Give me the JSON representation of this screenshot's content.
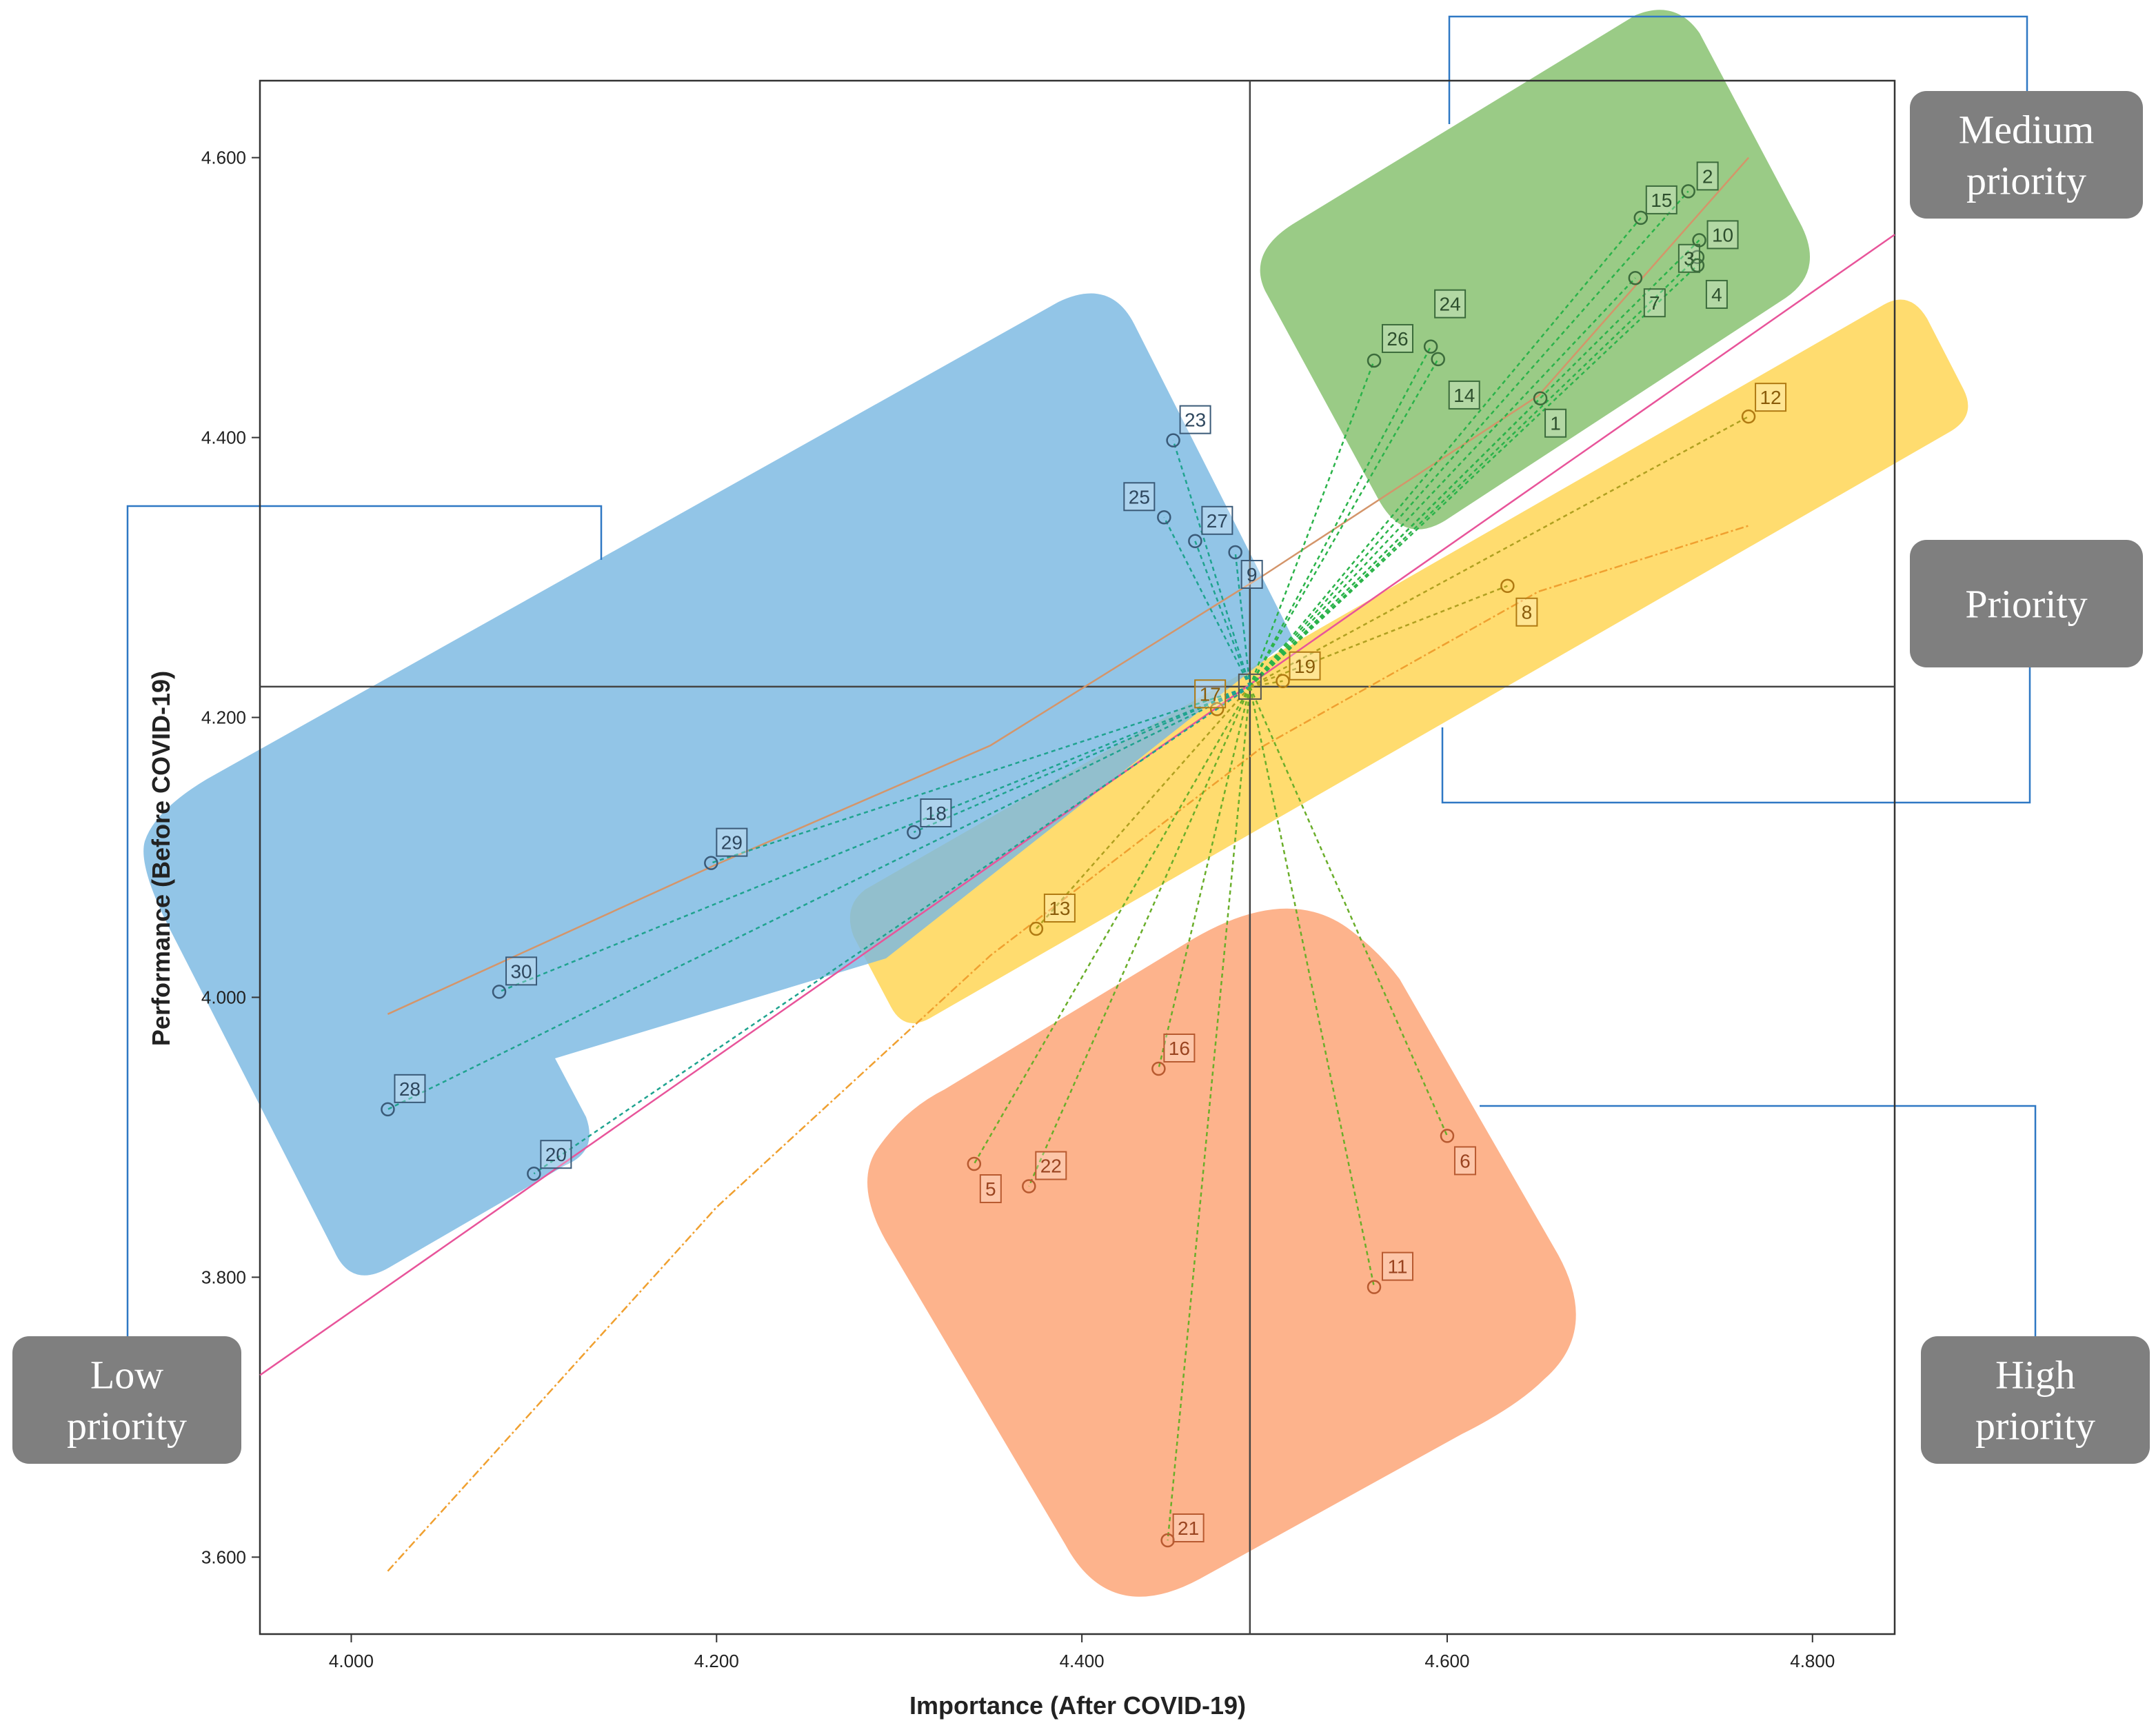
{
  "chart_data": {
    "type": "scatter",
    "title": "",
    "xlabel": "Importance (After COVID-19)",
    "ylabel": "Performance  (Before COVID-19)",
    "xlim": [
      3.95,
      4.845
    ],
    "ylim": [
      3.545,
      4.655
    ],
    "xticks": [
      {
        "value": 4.0,
        "label": "4.000"
      },
      {
        "value": 4.2,
        "label": "4.200"
      },
      {
        "value": 4.4,
        "label": "4.400"
      },
      {
        "value": 4.6,
        "label": "4.600"
      },
      {
        "value": 4.8,
        "label": "4.800"
      }
    ],
    "yticks": [
      {
        "value": 3.6,
        "label": "3.600"
      },
      {
        "value": 3.8,
        "label": "3.800"
      },
      {
        "value": 4.0,
        "label": "4.000"
      },
      {
        "value": 4.2,
        "label": "4.200"
      },
      {
        "value": 4.4,
        "label": "4.400"
      },
      {
        "value": 4.6,
        "label": "4.600"
      }
    ],
    "center": {
      "x": 4.492,
      "y": 4.222,
      "label": "C"
    },
    "reference_lines": {
      "x": 4.492,
      "y": 4.222
    },
    "diagonal": {
      "x": [
        3.95,
        4.845
      ],
      "y": [
        3.73,
        4.545
      ]
    },
    "quadrants": [
      {
        "name": "Medium priority",
        "color": "#84c06b",
        "points": [
          "1",
          "2",
          "3",
          "4",
          "7",
          "10",
          "14",
          "15",
          "24",
          "26"
        ]
      },
      {
        "name": "Priority",
        "color": "#ffd44f",
        "points": [
          "8",
          "12",
          "13",
          "17",
          "19"
        ]
      },
      {
        "name": "Low priority",
        "color": "#7ab8e2",
        "points": [
          "9",
          "18",
          "20",
          "23",
          "25",
          "27",
          "28",
          "29",
          "30"
        ]
      },
      {
        "name": "High priority",
        "color": "#fca273",
        "points": [
          "5",
          "6",
          "11",
          "16",
          "21",
          "22"
        ]
      }
    ],
    "points": [
      {
        "label": "1",
        "x": 4.651,
        "y": 4.428
      },
      {
        "label": "2",
        "x": 4.732,
        "y": 4.576
      },
      {
        "label": "3",
        "x": 4.737,
        "y": 4.529
      },
      {
        "label": "4",
        "x": 4.737,
        "y": 4.523
      },
      {
        "label": "7",
        "x": 4.703,
        "y": 4.514
      },
      {
        "label": "10",
        "x": 4.738,
        "y": 4.541
      },
      {
        "label": "14",
        "x": 4.595,
        "y": 4.456
      },
      {
        "label": "15",
        "x": 4.706,
        "y": 4.557
      },
      {
        "label": "24",
        "x": 4.591,
        "y": 4.465
      },
      {
        "label": "26",
        "x": 4.56,
        "y": 4.455
      },
      {
        "label": "8",
        "x": 4.633,
        "y": 4.294
      },
      {
        "label": "12",
        "x": 4.765,
        "y": 4.415
      },
      {
        "label": "13",
        "x": 4.375,
        "y": 4.049
      },
      {
        "label": "17",
        "x": 4.474,
        "y": 4.206
      },
      {
        "label": "19",
        "x": 4.51,
        "y": 4.226
      },
      {
        "label": "9",
        "x": 4.484,
        "y": 4.318
      },
      {
        "label": "18",
        "x": 4.308,
        "y": 4.118
      },
      {
        "label": "20",
        "x": 4.1,
        "y": 3.874
      },
      {
        "label": "23",
        "x": 4.45,
        "y": 4.398
      },
      {
        "label": "25",
        "x": 4.445,
        "y": 4.343
      },
      {
        "label": "27",
        "x": 4.462,
        "y": 4.326
      },
      {
        "label": "28",
        "x": 4.02,
        "y": 3.92
      },
      {
        "label": "29",
        "x": 4.197,
        "y": 4.096
      },
      {
        "label": "30",
        "x": 4.081,
        "y": 4.004
      },
      {
        "label": "5",
        "x": 4.341,
        "y": 3.881
      },
      {
        "label": "6",
        "x": 4.6,
        "y": 3.901
      },
      {
        "label": "11",
        "x": 4.56,
        "y": 3.793
      },
      {
        "label": "16",
        "x": 4.442,
        "y": 3.949
      },
      {
        "label": "21",
        "x": 4.447,
        "y": 3.612
      },
      {
        "label": "22",
        "x": 4.371,
        "y": 3.865
      }
    ]
  },
  "callouts": {
    "medium": "Medium\npriority",
    "priority": "Priority",
    "low": "Low\npriority",
    "high": "High\npriority"
  },
  "colors": {
    "medium": "#84c06b",
    "priority": "#ffd44f",
    "low": "#7ab8e2",
    "high": "#fca273",
    "callout_bg": "#7f7f7f",
    "bracket": "#2f78c4",
    "diagonal": "#e8549a",
    "trend": "#f0a030",
    "leader": "#2bb34a"
  }
}
